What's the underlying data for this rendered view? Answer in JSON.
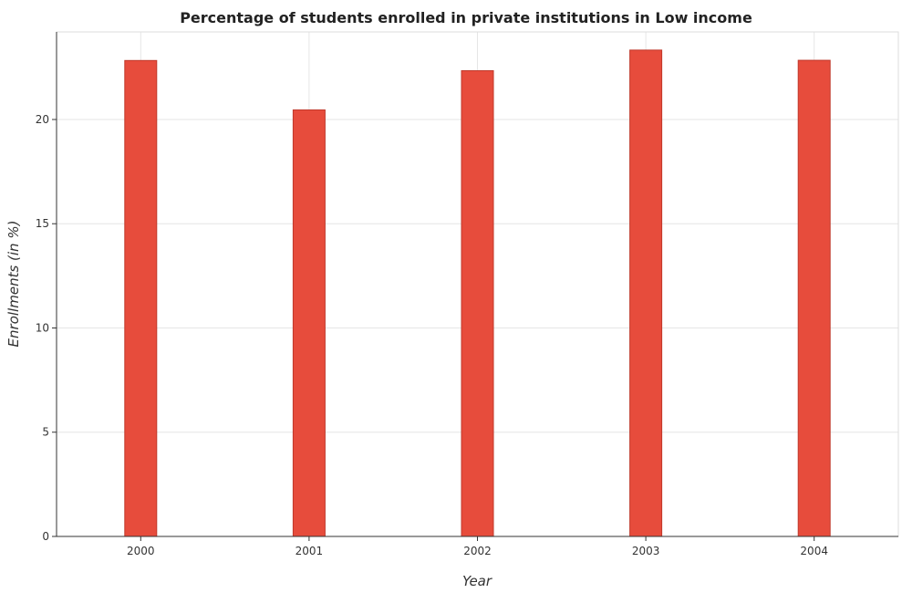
{
  "chart_data": {
    "type": "bar",
    "title": "Percentage of students enrolled in private institutions in Low income",
    "xlabel": "Year",
    "ylabel": "Enrollments (in %)",
    "categories": [
      "2000",
      "2001",
      "2002",
      "2003",
      "2004"
    ],
    "values": [
      22.83,
      20.46,
      22.34,
      23.33,
      22.84
    ],
    "ylim": [
      0,
      24.2
    ],
    "yticks": [
      0,
      5,
      10,
      15,
      20
    ],
    "ytick_labels": [
      "0",
      "5",
      "10",
      "15",
      "20"
    ],
    "grid": true,
    "bar_color": "#e74c3c"
  }
}
